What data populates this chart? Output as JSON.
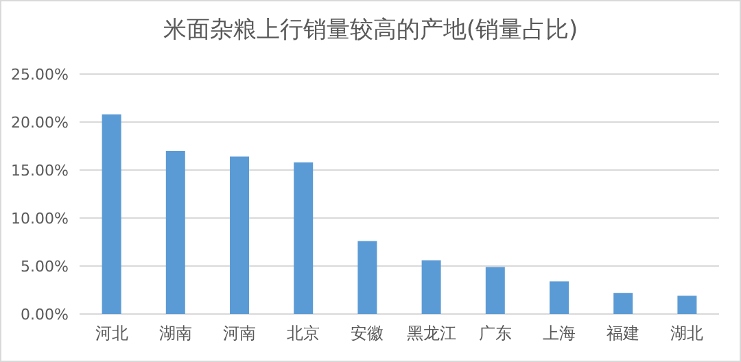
{
  "chart_data": {
    "type": "bar",
    "title": "米面杂粮上行销量较高的产地(销量占比)",
    "categories": [
      "河北",
      "湖南",
      "河南",
      "北京",
      "安徽",
      "黑龙江",
      "广东",
      "上海",
      "福建",
      "湖北"
    ],
    "values": [
      20.8,
      17.0,
      16.4,
      15.8,
      7.6,
      5.6,
      4.9,
      3.4,
      2.2,
      1.9
    ],
    "color": "#5b9bd5",
    "ylim": [
      0,
      25
    ],
    "yticks": [
      {
        "value": 0,
        "label": "0.00%"
      },
      {
        "value": 5,
        "label": "5.00%"
      },
      {
        "value": 10,
        "label": "10.00%"
      },
      {
        "value": 15,
        "label": "15.00%"
      },
      {
        "value": 20,
        "label": "20.00%"
      },
      {
        "value": 25,
        "label": "25.00%"
      }
    ],
    "grid": "y"
  }
}
